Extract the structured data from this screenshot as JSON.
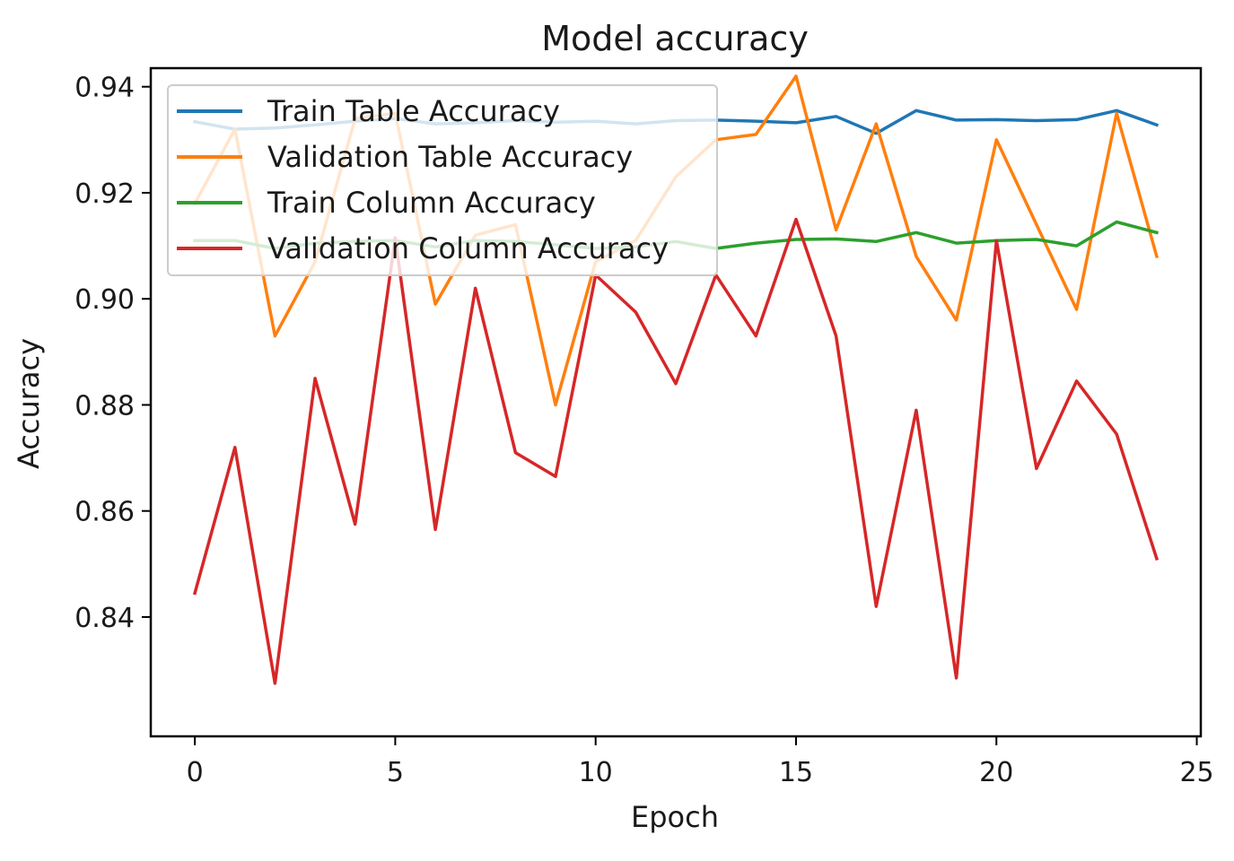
{
  "chart_data": {
    "type": "line",
    "title": "Model accuracy",
    "xlabel": "Epoch",
    "ylabel": "Accuracy",
    "xlim": [
      -1.1,
      25.1
    ],
    "ylim": [
      0.8175,
      0.9435
    ],
    "x_ticks": [
      0,
      5,
      10,
      15,
      20,
      25
    ],
    "x_tick_labels": [
      "0",
      "5",
      "10",
      "15",
      "20",
      "25"
    ],
    "y_ticks": [
      0.84,
      0.86,
      0.88,
      0.9,
      0.92,
      0.94
    ],
    "y_tick_labels": [
      "0.84",
      "0.86",
      "0.88",
      "0.90",
      "0.92",
      "0.94"
    ],
    "grid": false,
    "legend_position": "upper-left",
    "x": [
      0,
      1,
      2,
      3,
      4,
      5,
      6,
      7,
      8,
      9,
      10,
      11,
      12,
      13,
      14,
      15,
      16,
      17,
      18,
      19,
      20,
      21,
      22,
      23,
      24
    ],
    "series": [
      {
        "name": "Train Table Accuracy",
        "color": "#1f77b4",
        "values": [
          0.9334,
          0.932,
          0.9322,
          0.9328,
          0.9335,
          0.934,
          0.933,
          0.9332,
          0.9336,
          0.9333,
          0.9335,
          0.933,
          0.9336,
          0.9337,
          0.9335,
          0.9332,
          0.9344,
          0.9312,
          0.9355,
          0.9337,
          0.9338,
          0.9336,
          0.9338,
          0.9355,
          0.9328
        ]
      },
      {
        "name": "Validation Table Accuracy",
        "color": "#ff7f0e",
        "values": [
          0.918,
          0.932,
          0.893,
          0.907,
          0.934,
          0.935,
          0.899,
          0.912,
          0.914,
          0.88,
          0.907,
          0.911,
          0.923,
          0.93,
          0.931,
          0.942,
          0.913,
          0.933,
          0.908,
          0.896,
          0.93,
          0.914,
          0.898,
          0.935,
          0.908
        ]
      },
      {
        "name": "Train Column Accuracy",
        "color": "#2ca02c",
        "values": [
          0.911,
          0.911,
          0.9095,
          0.9105,
          0.9108,
          0.911,
          0.9098,
          0.911,
          0.9108,
          0.9102,
          0.9095,
          0.9098,
          0.9108,
          0.9095,
          0.9105,
          0.9112,
          0.9113,
          0.9108,
          0.9125,
          0.9105,
          0.911,
          0.9112,
          0.91,
          0.9145,
          0.9125
        ]
      },
      {
        "name": "Validation Column Accuracy",
        "color": "#d62728",
        "values": [
          0.8445,
          0.872,
          0.8275,
          0.885,
          0.8575,
          0.9115,
          0.8565,
          0.902,
          0.871,
          0.8665,
          0.9045,
          0.8975,
          0.884,
          0.9045,
          0.893,
          0.915,
          0.893,
          0.842,
          0.879,
          0.8285,
          0.911,
          0.868,
          0.8845,
          0.8745,
          0.851
        ]
      }
    ]
  }
}
